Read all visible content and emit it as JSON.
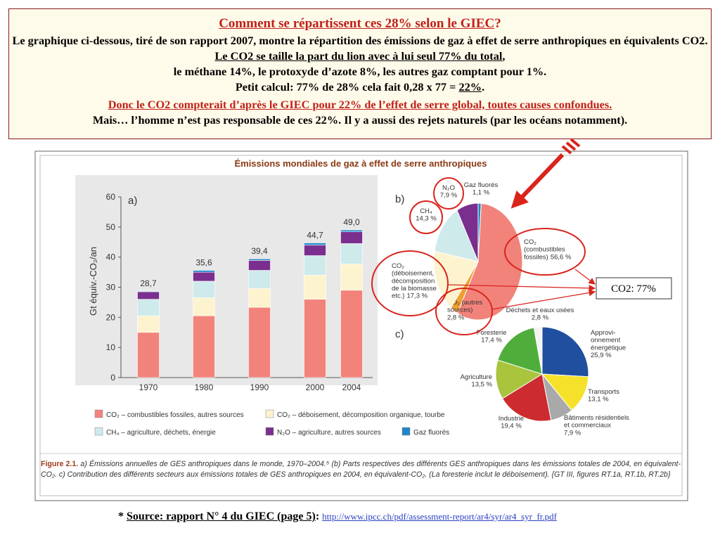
{
  "header": {
    "title": "Comment se répartissent ces 28% selon le GIEC",
    "title_end": "?",
    "intro": "Le graphique ci-dessous, tiré de son rapport 2007, montre la répartition des émissions de gaz à effet de serre anthropiques en équivalents CO2. ",
    "intro_emphasis": "Le CO2 se taille la part du lion avec à lui seul 77% du total",
    "intro_end": ",",
    "others": "le méthane 14%, le protoxyde d’azote 8%, les autres gaz comptant pour 1%.",
    "calc": "Petit calcul: 77% de 28% cela fait 0,28 x 77 = ",
    "calc_result": "22%",
    "calc_end": ".",
    "conclusion": "Donc le CO2 compterait d’après le GIEC pour 22% de l’effet de serre global, toutes causes confondues.",
    "caveat": "Mais… l’homme n’est pas responsable de ces 22%. Il y a aussi des rejets naturels (par les océans notamment)."
  },
  "figure": {
    "title": "Émissions mondiales de gaz à effet de serre anthropiques",
    "caption_label": "Figure 2.1.",
    "caption": "a) Émissions annuelles de GES anthropiques dans le monde, 1970–2004.⁵ (b) Parts respectives des différents GES anthropiques dans les émissions totales de 2004, en équivalent-CO₂. c) Contribution des différents secteurs aux émissions totales de GES anthropiques en 2004, en équivalent-CO₂. (La foresterie inclut le déboisement). {GT III, figures RT.1a, RT.1b, RT.2b}"
  },
  "callout": "CO2: 77%",
  "source": {
    "prefix": "*",
    "text": "Source: rapport N° 4 du GIEC (page 5)",
    "separator": ":",
    "url": "http://www.ipcc.ch/pdf/assessment-report/ar4/syr/ar4_syr_fr.pdf"
  },
  "chart_data": [
    {
      "type": "stacked_bar",
      "panel": "a)",
      "y_label": "Gt équiv.-CO₂/an",
      "categories": [
        "1970",
        "1980",
        "1990",
        "2000",
        "2004"
      ],
      "series": [
        {
          "name": "CO₂ – combustibles fossiles, autres sources",
          "color": "#f2837b",
          "values": [
            15,
            20.5,
            23.3,
            26,
            29
          ]
        },
        {
          "name": "CO₂ – déboisement, décomposition organique, tourbe",
          "color": "#fdf3cf",
          "values": [
            5.5,
            6,
            6.3,
            8,
            8.7
          ]
        },
        {
          "name": "CH₄ – agriculture, déchets, énergie",
          "color": "#cfeaea",
          "values": [
            5.5,
            5.5,
            6,
            6.5,
            6.8
          ]
        },
        {
          "name": "N₂O – agriculture, autres sources",
          "color": "#7a2f8e",
          "values": [
            2.5,
            3,
            3.3,
            3.5,
            3.9
          ]
        },
        {
          "name": "Gaz fluorés",
          "color": "#1f86c8",
          "values": [
            0.2,
            0.6,
            0.5,
            0.7,
            0.6
          ]
        }
      ],
      "totals": [
        28.7,
        35.6,
        39.4,
        44.7,
        49.0
      ],
      "total_labels": [
        "28,7",
        "35,6",
        "39,4",
        "44,7",
        "49,0"
      ],
      "ylim": [
        0,
        60
      ],
      "yticks": [
        0,
        10,
        20,
        30,
        40,
        50,
        60
      ]
    },
    {
      "type": "pie",
      "panel": "b)",
      "categories": [
        "Gaz fluorés",
        "CO₂\n(combustibles\nfossiles)",
        "CO₂ (autres\nsources)",
        "CO₂\n(déboisement,\ndécomposition\nde la biomasse\netc.)",
        "CH₄",
        "N₂O"
      ],
      "values": [
        1.1,
        56.6,
        2.8,
        17.3,
        14.3,
        7.9
      ],
      "value_labels": [
        "1,1 %",
        "56,6 %",
        "2,8 %",
        "17,3 %",
        "14,3 %",
        "7,9 %"
      ],
      "colors": [
        "#1f86c8",
        "#f2837b",
        "#f0a033",
        "#fdf3cf",
        "#cfeaea",
        "#7a2f8e"
      ]
    },
    {
      "type": "pie",
      "panel": "c)",
      "categories": [
        "Approvi-\nonnement\nénergétique",
        "Transports",
        "Bâtiments résidentiels\net commerciaux",
        "Industrie",
        "Agriculture",
        "Foresterie",
        "Déchets et eaux usées"
      ],
      "values": [
        25.9,
        13.1,
        7.9,
        19.4,
        13.5,
        17.4,
        2.8
      ],
      "value_labels": [
        "25,9 %",
        "13,1 %",
        "7,9 %",
        "19,4 %",
        "13,5 %",
        "17,4 %",
        "2,8 %"
      ],
      "colors": [
        "#1f4f9e",
        "#f5e12a",
        "#a9a9a9",
        "#cc2b2f",
        "#a9c43d",
        "#4fae3b",
        "#f4f4f4"
      ]
    }
  ]
}
